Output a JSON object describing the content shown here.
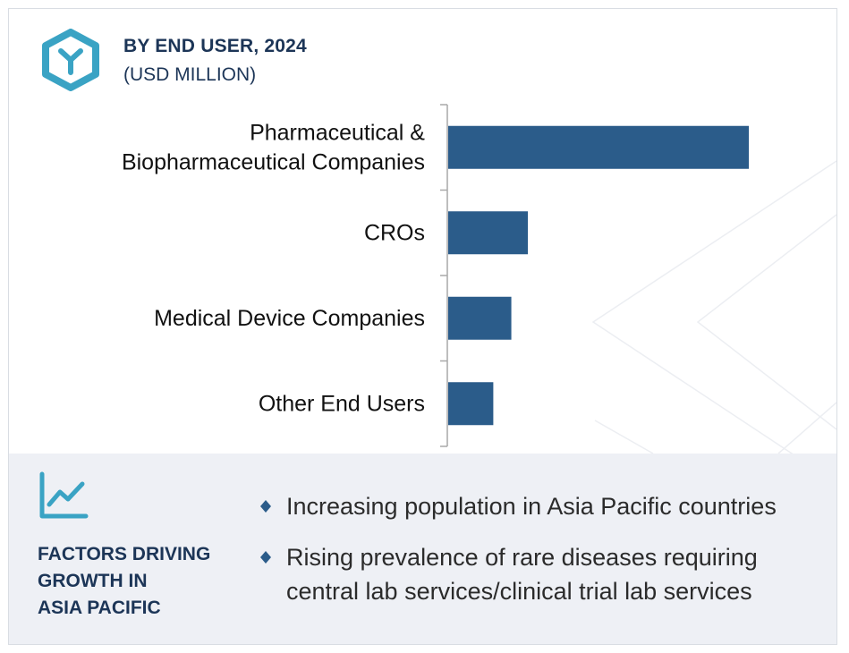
{
  "header": {
    "title": "BY END USER, 2024",
    "subtitle": "(USD MILLION)",
    "icon": "hexagon-y-logo-icon"
  },
  "chart_data": {
    "type": "bar",
    "orientation": "horizontal",
    "title": "BY END USER, 2024",
    "subtitle": "(USD MILLION)",
    "categories": [
      [
        "Pharmaceutical &",
        "Biopharmaceutical Companies"
      ],
      [
        "CROs"
      ],
      [
        "Medical Device Companies"
      ],
      [
        "Other End Users"
      ]
    ],
    "values": [
      100,
      26.5,
      21,
      15
    ],
    "value_scale": "relative (no axis values shown)",
    "bar_color": "#2b5c8a",
    "grid": false,
    "legend": "none"
  },
  "factors": {
    "icon": "trend-chart-icon",
    "title_lines": [
      "FACTORS DRIVING",
      "GROWTH IN",
      "ASIA PACIFIC"
    ],
    "bullets": [
      [
        "Increasing population in Asia Pacific countries"
      ],
      [
        "Rising prevalence of rare diseases requiring",
        "central lab services/clinical trial lab services"
      ]
    ]
  },
  "colors": {
    "navy": "#1c3557",
    "bar": "#2b5c8a",
    "teal": "#3aa3c4",
    "panel_bg": "#eef0f5"
  }
}
